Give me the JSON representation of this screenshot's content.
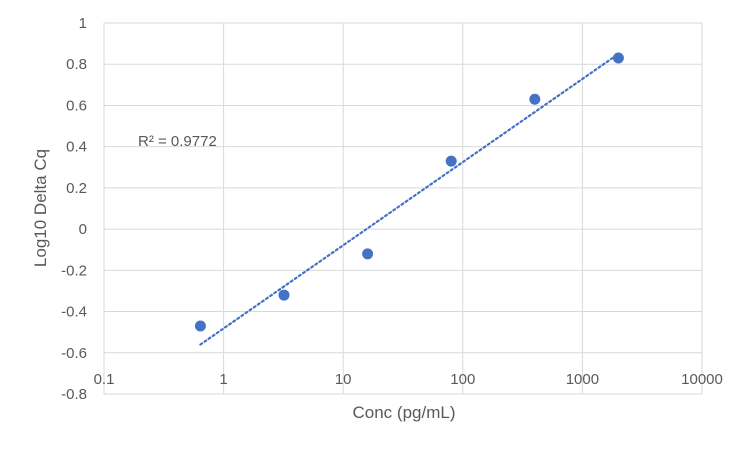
{
  "chart_data": {
    "type": "scatter",
    "title": "",
    "xlabel": "Conc (pg/mL)",
    "ylabel": "Log10 Delta Cq",
    "x_scale": "log",
    "xlim": [
      0.1,
      10000
    ],
    "ylim": [
      -0.8,
      1
    ],
    "x_ticks": [
      0.1,
      1,
      10,
      100,
      1000,
      10000
    ],
    "x_tick_labels": [
      "0.1",
      "1",
      "10",
      "100",
      "1000",
      "10000"
    ],
    "y_ticks": [
      -0.8,
      -0.6,
      -0.4,
      -0.2,
      0,
      0.2,
      0.4,
      0.6,
      0.8,
      1
    ],
    "y_tick_labels": [
      "-0.8",
      "-0.6",
      "-0.4",
      "-0.2",
      "0",
      "0.2",
      "0.4",
      "0.6",
      "0.8",
      "1"
    ],
    "grid": true,
    "legend": "none",
    "series": [
      {
        "x": [
          0.64,
          3.2,
          16,
          80,
          400,
          2000
        ],
        "y": [
          -0.47,
          -0.32,
          -0.12,
          0.33,
          0.63,
          0.83
        ]
      }
    ],
    "trendline": {
      "type": "logarithmic",
      "style": "dotted",
      "x": [
        0.64,
        2000
      ],
      "y": [
        -0.56,
        0.85
      ]
    },
    "annotation": "R² = 0.9772",
    "colors": {
      "marker": "#4472C4",
      "trendline": "#4472C4",
      "grid": "#D9D9D9",
      "text": "#595959"
    }
  }
}
